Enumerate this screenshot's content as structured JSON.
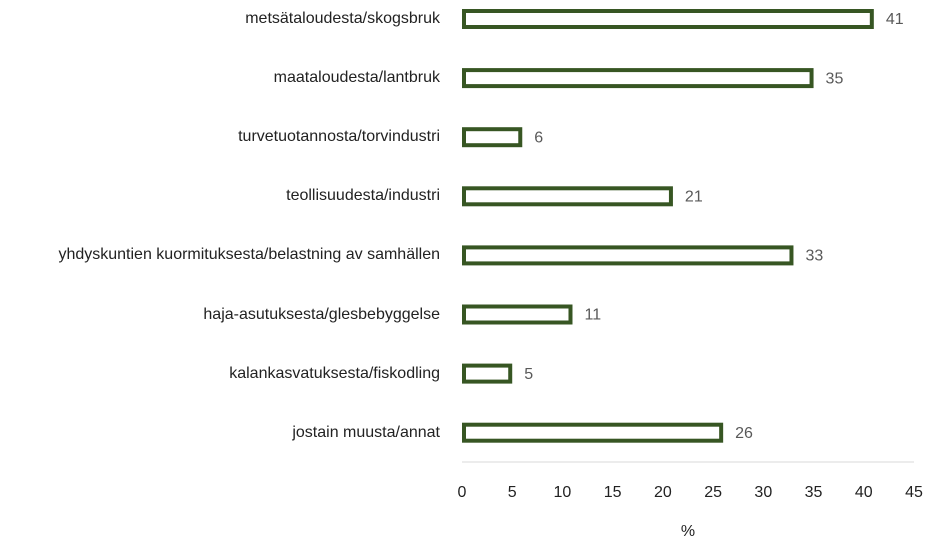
{
  "chart_data": {
    "type": "barh",
    "categories": [
      "metsätaloudesta/skogsbruk",
      "maataloudesta/lantbruk",
      "turvetuotannosta/torvindustri",
      "teollisuudesta/industri",
      "yhdyskuntien kuormituksesta/belastning av samhällen",
      "haja-asutuksesta/glesbebyggelse",
      "kalankasvatuksesta/fiskodling",
      "jostain muusta/annat"
    ],
    "values": [
      41,
      35,
      6,
      21,
      33,
      11,
      5,
      26
    ],
    "color": "#375623",
    "xlabel": "%",
    "xlim": [
      0,
      45
    ],
    "xticks": [
      0,
      5,
      10,
      15,
      20,
      25,
      30,
      35,
      40,
      45
    ]
  }
}
